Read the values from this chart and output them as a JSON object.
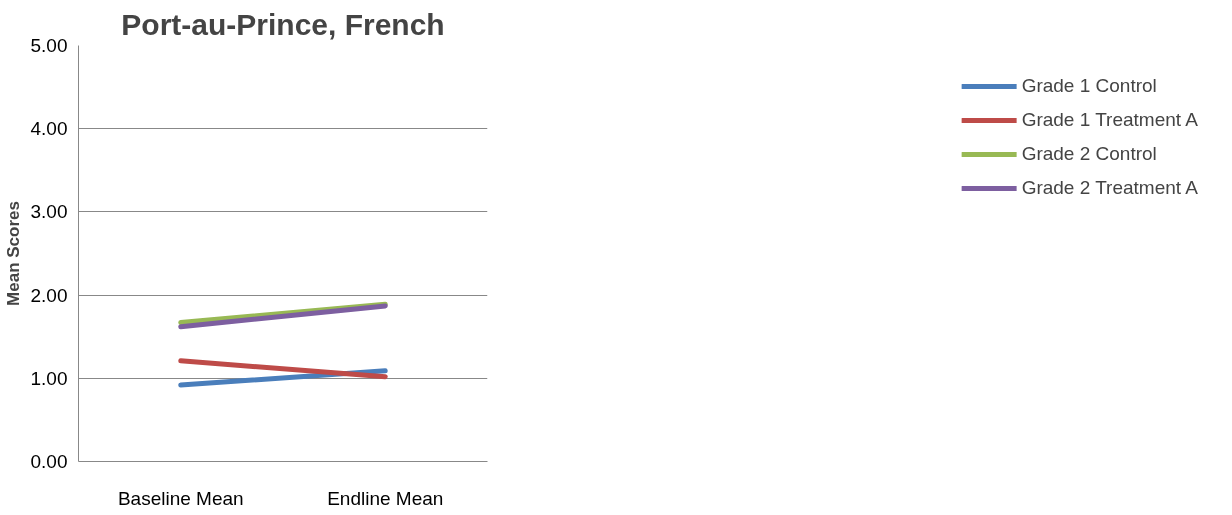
{
  "chart_data": {
    "type": "line",
    "title": "Port-au-Prince, French",
    "ylabel": "Mean Scores",
    "categories": [
      "Baseline Mean",
      "Endline Mean"
    ],
    "series": [
      {
        "name": "Grade 1 Control",
        "color": "#4a7ebb",
        "values": [
          0.92,
          1.09
        ]
      },
      {
        "name": "Grade 1 Treatment A",
        "color": "#be4b48",
        "values": [
          1.21,
          1.02
        ]
      },
      {
        "name": "Grade 2 Control",
        "color": "#98b954",
        "values": [
          1.67,
          1.89
        ]
      },
      {
        "name": "Grade 2 Treatment A",
        "color": "#7d5fa0",
        "values": [
          1.62,
          1.87
        ]
      }
    ],
    "ylim": [
      0,
      5
    ],
    "yticks": [
      {
        "value": 0,
        "label": "0.00"
      },
      {
        "value": 1,
        "label": "1.00"
      },
      {
        "value": 2,
        "label": "2.00"
      },
      {
        "value": 3,
        "label": "3.00"
      },
      {
        "value": 4,
        "label": "4.00"
      },
      {
        "value": 5,
        "label": "5.00"
      }
    ],
    "grid": "y",
    "legend": "right",
    "marker": "none",
    "line_style": "solid"
  }
}
